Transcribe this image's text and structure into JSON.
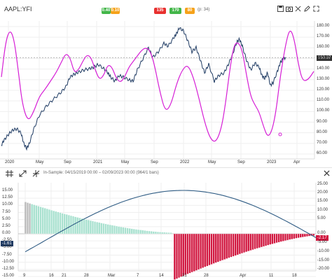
{
  "toolbar": {
    "symbol": "AAPL:YFI",
    "bidask": [
      "0.40",
      "0.10"
    ],
    "counts": [
      "135",
      "170",
      "80"
    ],
    "extra_label": "(p: 34)",
    "bidask_colors": [
      "#43b649",
      "#f6a21a"
    ],
    "count_colors": [
      "#e8312f",
      "#43b649",
      "#f6a21a"
    ],
    "icons": [
      "save-icon",
      "camera-icon",
      "expand-icon",
      "pencil-icon",
      "fullscreen-icon"
    ],
    "divider_icons": [
      "grid-icon",
      "expand-arrows-icon",
      "collapse-arrows-icon"
    ],
    "close_icon": "close-icon",
    "sample_text": "In-Sample: 04/15/2019 00:00 – 02/09/2023 00:00 (964/1 bars)"
  },
  "price_chart": {
    "y_ticks": [
      "180.00",
      "170.00",
      "160.00",
      "150.00",
      "140.00",
      "130.00",
      "120.00",
      "110.00",
      "100.00",
      "90.00",
      "80.00",
      "70.00",
      "60.00"
    ],
    "x_ticks": [
      "2020",
      "May",
      "Sep",
      "2021",
      "May",
      "Sep",
      "2022",
      "May",
      "Sep",
      "2023",
      "Apr"
    ],
    "last_price_label": "150.87",
    "series_colors": {
      "price": "#1f3b63",
      "cycle": "#d61fd6",
      "last": "#333333"
    }
  },
  "osc_chart": {
    "y_ticks": [
      "15.00",
      "12.50",
      "10.00",
      "7.50",
      "5.00",
      "2.50",
      "0.00",
      "-2.50",
      "-5.00",
      "-7.50",
      "-10.00",
      "-12.50",
      "-15.00"
    ],
    "y_ticks_right": [
      "25.00",
      "20.00",
      "15.00",
      "10.00",
      "5.00",
      "0.00",
      "-5.00",
      "-10.00",
      "-15.00",
      "-20.00"
    ],
    "x_ticks": [
      "9",
      "16",
      "21",
      "28",
      "Mar",
      "7",
      "14",
      "21",
      "28",
      "Apr",
      "11",
      "18"
    ],
    "left_tag": "-1.61",
    "right_tag": "-2.17",
    "colors": {
      "pos": "#a8e1cf",
      "neg": "#d1163f",
      "gray": "#bbbbbb",
      "curve": "#2f5c84"
    }
  }
}
